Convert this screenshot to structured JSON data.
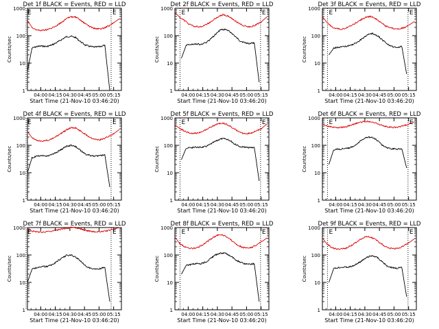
{
  "colors": {
    "events": "#000000",
    "lld": "#dd0000",
    "axes": "#000000"
  },
  "chart_data": [
    {
      "type": "line",
      "title": "Det 1f BLACK = Events, RED = LLD",
      "xlabel": "Start Time (21-Nov-10 03:46:20)",
      "ylabel": "Counts/sec",
      "yscale": "log",
      "ylim": [
        1,
        1000
      ],
      "yticks": [
        "1",
        "10",
        "100",
        "1000"
      ],
      "xticks": [
        "04:00",
        "04:15",
        "04:30",
        "04:45",
        "05:00",
        "05:15"
      ],
      "markers": [
        "E",
        "E"
      ],
      "series": [
        {
          "name": "Events",
          "key": "black",
          "x": [
            "03:46:20",
            "03:51",
            "03:56",
            "04:01",
            "04:06",
            "04:11",
            "04:16",
            "04:21",
            "04:26",
            "04:31",
            "04:36",
            "04:41",
            "04:46",
            "04:51",
            "04:56",
            "05:01",
            "05:06",
            "05:11"
          ],
          "y": [
            5,
            35,
            40,
            42,
            40,
            45,
            55,
            70,
            90,
            95,
            85,
            60,
            45,
            40,
            38,
            40,
            45,
            1
          ]
        },
        {
          "name": "LLD",
          "key": "red",
          "x": [
            "03:46:20",
            "03:51",
            "03:56",
            "04:01",
            "04:06",
            "04:11",
            "04:16",
            "04:21",
            "04:26",
            "04:31",
            "04:36",
            "04:41",
            "04:46",
            "04:51",
            "04:56",
            "05:01",
            "05:06",
            "05:11",
            "05:16",
            "05:21"
          ],
          "y": [
            360,
            200,
            160,
            155,
            165,
            185,
            230,
            300,
            400,
            490,
            470,
            360,
            270,
            210,
            180,
            175,
            195,
            240,
            310,
            420
          ]
        }
      ]
    },
    {
      "type": "line",
      "title": "Det 2f BLACK = Events, RED = LLD",
      "xlabel": "Start Time (21-Nov-10 03:46:20)",
      "ylabel": "Counts/sec",
      "yscale": "log",
      "ylim": [
        1,
        1000
      ],
      "yticks": [
        "1",
        "10",
        "100",
        "1000"
      ],
      "xticks": [
        "04:00",
        "04:15",
        "04:30",
        "04:45",
        "05:00",
        "05:15"
      ],
      "markers": [
        "E",
        "E"
      ],
      "series": [
        {
          "name": "Events",
          "key": "black",
          "x": [
            "03:53",
            "03:58",
            "04:03",
            "04:08",
            "04:13",
            "04:18",
            "04:23",
            "04:28",
            "04:33",
            "04:38",
            "04:43",
            "04:48",
            "04:53",
            "04:58",
            "05:03",
            "05:08",
            "05:13"
          ],
          "y": [
            15,
            45,
            48,
            50,
            48,
            55,
            75,
            110,
            160,
            170,
            140,
            95,
            65,
            55,
            52,
            55,
            2
          ]
        },
        {
          "name": "LLD",
          "key": "red",
          "x": [
            "03:46:20",
            "03:51",
            "03:56",
            "04:01",
            "04:06",
            "04:11",
            "04:16",
            "04:21",
            "04:26",
            "04:31",
            "04:36",
            "04:41",
            "04:46",
            "04:51",
            "04:56",
            "05:01",
            "05:06",
            "05:11",
            "05:16",
            "05:21"
          ],
          "y": [
            700,
            480,
            360,
            260,
            220,
            210,
            230,
            280,
            380,
            500,
            580,
            520,
            400,
            300,
            240,
            210,
            220,
            260,
            340,
            480
          ]
        }
      ]
    },
    {
      "type": "line",
      "title": "Det 3f BLACK = Events, RED = LLD",
      "xlabel": "Start Time (21-Nov-10 03:46:20)",
      "ylabel": "Counts/sec",
      "yscale": "log",
      "ylim": [
        1,
        1000
      ],
      "yticks": [
        "1",
        "10",
        "100",
        "1000"
      ],
      "xticks": [
        "04:00",
        "04:15",
        "04:30",
        "04:45",
        "05:00",
        "05:15"
      ],
      "markers": [
        "E",
        "E"
      ],
      "series": [
        {
          "name": "Events",
          "key": "black",
          "x": [
            "03:53",
            "03:58",
            "04:03",
            "04:08",
            "04:13",
            "04:18",
            "04:23",
            "04:28",
            "04:33",
            "04:38",
            "04:43",
            "04:48",
            "04:53",
            "04:58",
            "05:03",
            "05:08",
            "05:13"
          ],
          "y": [
            20,
            35,
            38,
            40,
            42,
            48,
            60,
            80,
            110,
            120,
            100,
            70,
            50,
            40,
            38,
            40,
            4
          ]
        },
        {
          "name": "LLD",
          "key": "red",
          "x": [
            "03:46:20",
            "03:51",
            "03:56",
            "04:01",
            "04:06",
            "04:11",
            "04:16",
            "04:21",
            "04:26",
            "04:31",
            "04:36",
            "04:41",
            "04:46",
            "04:51",
            "04:56",
            "05:01",
            "05:06",
            "05:11",
            "05:16",
            "05:21"
          ],
          "y": [
            500,
            300,
            210,
            180,
            175,
            190,
            230,
            290,
            380,
            470,
            500,
            420,
            310,
            230,
            190,
            175,
            180,
            200,
            250,
            330
          ]
        }
      ]
    },
    {
      "type": "line",
      "title": "Det 4f BLACK = Events, RED = LLD",
      "xlabel": "Start Time (21-Nov-10 03:46:20)",
      "ylabel": "Counts/sec",
      "yscale": "log",
      "ylim": [
        1,
        1000
      ],
      "yticks": [
        "1",
        "10",
        "100",
        "1000"
      ],
      "xticks": [
        "04:00",
        "04:15",
        "04:30",
        "04:45",
        "05:00",
        "05:15"
      ],
      "markers": [
        "E",
        "E"
      ],
      "series": [
        {
          "name": "Events",
          "key": "black",
          "x": [
            "03:46:20",
            "03:51",
            "03:56",
            "04:01",
            "04:06",
            "04:11",
            "04:16",
            "04:21",
            "04:26",
            "04:31",
            "04:36",
            "04:41",
            "04:46",
            "04:51",
            "04:56",
            "05:01",
            "05:06",
            "05:11"
          ],
          "y": [
            10,
            35,
            40,
            42,
            40,
            45,
            55,
            70,
            90,
            100,
            90,
            65,
            48,
            42,
            40,
            42,
            45,
            3
          ]
        },
        {
          "name": "LLD",
          "key": "red",
          "x": [
            "03:46:20",
            "03:51",
            "03:56",
            "04:01",
            "04:06",
            "04:11",
            "04:16",
            "04:21",
            "04:26",
            "04:31",
            "04:36",
            "04:41",
            "04:46",
            "04:51",
            "04:56",
            "05:01",
            "05:06",
            "05:11",
            "05:16",
            "05:21"
          ],
          "y": [
            320,
            190,
            150,
            145,
            150,
            170,
            210,
            270,
            360,
            440,
            430,
            330,
            250,
            195,
            165,
            160,
            180,
            220,
            280,
            380
          ]
        }
      ]
    },
    {
      "type": "line",
      "title": "Det 5f BLACK = Events, RED = LLD",
      "xlabel": "Start Time (21-Nov-10 03:46:20)",
      "ylabel": "Counts/sec",
      "yscale": "log",
      "ylim": [
        1,
        1000
      ],
      "yticks": [
        "1",
        "10",
        "100",
        "1000"
      ],
      "xticks": [
        "04:00",
        "04:15",
        "04:30",
        "04:45",
        "05:00",
        "05:15"
      ],
      "markers": [
        "E",
        "E"
      ],
      "series": [
        {
          "name": "Events",
          "key": "black",
          "x": [
            "03:53",
            "03:58",
            "04:03",
            "04:08",
            "04:13",
            "04:18",
            "04:23",
            "04:28",
            "04:33",
            "04:38",
            "04:43",
            "04:48",
            "04:53",
            "04:58",
            "05:03",
            "05:08",
            "05:13"
          ],
          "y": [
            30,
            80,
            82,
            85,
            85,
            90,
            110,
            140,
            170,
            175,
            150,
            110,
            90,
            85,
            82,
            85,
            5
          ]
        },
        {
          "name": "LLD",
          "key": "red",
          "x": [
            "03:46:20",
            "03:51",
            "03:56",
            "04:01",
            "04:06",
            "04:11",
            "04:16",
            "04:21",
            "04:26",
            "04:31",
            "04:36",
            "04:41",
            "04:46",
            "04:51",
            "04:56",
            "05:01",
            "05:06",
            "05:11",
            "05:16",
            "05:21"
          ],
          "y": [
            550,
            420,
            330,
            280,
            270,
            290,
            340,
            420,
            520,
            620,
            640,
            560,
            430,
            330,
            280,
            270,
            290,
            340,
            430,
            600
          ]
        }
      ]
    },
    {
      "type": "line",
      "title": "Det 6f BLACK = Events, RED = LLD",
      "xlabel": "Start Time (21-Nov-10 03:46:20)",
      "ylabel": "Counts/sec",
      "yscale": "log",
      "ylim": [
        1,
        1000
      ],
      "yticks": [
        "1",
        "10",
        "100",
        "1000"
      ],
      "xticks": [
        "04:00",
        "04:15",
        "04:30",
        "04:45",
        "05:00",
        "05:15"
      ],
      "markers": [
        "E",
        "E"
      ],
      "series": [
        {
          "name": "Events",
          "key": "black",
          "x": [
            "03:53",
            "03:58",
            "04:03",
            "04:08",
            "04:13",
            "04:18",
            "04:23",
            "04:28",
            "04:33",
            "04:38",
            "04:43",
            "04:48",
            "04:53",
            "04:58",
            "05:03",
            "05:08",
            "05:13"
          ],
          "y": [
            20,
            70,
            72,
            75,
            78,
            90,
            120,
            170,
            200,
            190,
            150,
            100,
            80,
            75,
            72,
            75,
            15
          ]
        },
        {
          "name": "LLD",
          "key": "red",
          "x": [
            "03:46:20",
            "03:51",
            "03:56",
            "04:01",
            "04:06",
            "04:11",
            "04:16",
            "04:21",
            "04:26",
            "04:31",
            "04:36",
            "04:41",
            "04:46",
            "04:51",
            "04:56",
            "05:01",
            "05:06",
            "05:11",
            "05:16",
            "05:21"
          ],
          "y": [
            600,
            500,
            460,
            440,
            450,
            480,
            540,
            620,
            700,
            750,
            740,
            660,
            560,
            490,
            460,
            450,
            470,
            530,
            620,
            720
          ]
        }
      ]
    },
    {
      "type": "line",
      "title": "Det 7f BLACK = Events, RED = LLD",
      "xlabel": "Start Time (21-Nov-10 03:46:20)",
      "ylabel": "Counts/sec",
      "yscale": "log",
      "ylim": [
        1,
        1000
      ],
      "yticks": [
        "1",
        "10",
        "100",
        "1000"
      ],
      "xticks": [
        "04:00",
        "04:15",
        "04:30",
        "04:45",
        "05:00",
        "05:15"
      ],
      "markers": [
        "E",
        "E"
      ],
      "series": [
        {
          "name": "Events",
          "key": "black",
          "x": [
            "03:46:20",
            "03:51",
            "03:56",
            "04:01",
            "04:06",
            "04:11",
            "04:16",
            "04:21",
            "04:26",
            "04:31",
            "04:36",
            "04:41",
            "04:46",
            "04:51",
            "04:56",
            "05:01",
            "05:06",
            "05:11"
          ],
          "y": [
            10,
            30,
            35,
            38,
            38,
            42,
            55,
            75,
            95,
            100,
            85,
            60,
            40,
            33,
            30,
            32,
            35,
            2
          ]
        },
        {
          "name": "LLD",
          "key": "red",
          "x": [
            "03:46:20",
            "03:51",
            "03:56",
            "04:01",
            "04:06",
            "04:11",
            "04:16",
            "04:21",
            "04:26",
            "04:31",
            "04:36",
            "04:41",
            "04:46",
            "04:51",
            "04:56",
            "05:01",
            "05:06",
            "05:11",
            "05:16",
            "05:21"
          ],
          "y": [
            900,
            750,
            700,
            690,
            700,
            740,
            800,
            880,
            950,
            1000,
            990,
            900,
            800,
            730,
            700,
            700,
            730,
            800,
            900,
            1000
          ]
        }
      ]
    },
    {
      "type": "line",
      "title": "Det 8f BLACK = Events, RED = LLD",
      "xlabel": "Start Time (21-Nov-10 03:46:20)",
      "ylabel": "Counts/sec",
      "yscale": "log",
      "ylim": [
        1,
        1000
      ],
      "yticks": [
        "1",
        "10",
        "100",
        "1000"
      ],
      "xticks": [
        "04:00",
        "04:15",
        "04:30",
        "04:45",
        "05:00",
        "05:15"
      ],
      "markers": [
        "E",
        "E"
      ],
      "series": [
        {
          "name": "Events",
          "key": "black",
          "x": [
            "03:53",
            "03:58",
            "04:03",
            "04:08",
            "04:13",
            "04:18",
            "04:23",
            "04:28",
            "04:33",
            "04:38",
            "04:43",
            "04:48",
            "04:53",
            "04:58",
            "05:03",
            "05:08",
            "05:13"
          ],
          "y": [
            20,
            42,
            45,
            48,
            48,
            55,
            75,
            100,
            120,
            115,
            95,
            70,
            55,
            48,
            46,
            48,
            2
          ]
        },
        {
          "name": "LLD",
          "key": "red",
          "x": [
            "03:46:20",
            "03:51",
            "03:56",
            "04:01",
            "04:06",
            "04:11",
            "04:16",
            "04:21",
            "04:26",
            "04:31",
            "04:36",
            "04:41",
            "04:46",
            "04:51",
            "04:56",
            "05:01",
            "05:06",
            "05:11",
            "05:16",
            "05:21"
          ],
          "y": [
            450,
            270,
            200,
            175,
            175,
            195,
            250,
            330,
            440,
            540,
            530,
            420,
            310,
            230,
            190,
            180,
            195,
            240,
            310,
            420
          ]
        }
      ]
    },
    {
      "type": "line",
      "title": "Det 9f BLACK = Events, RED = LLD",
      "xlabel": "Start Time (21-Nov-10 03:46:20)",
      "ylabel": "Counts/sec",
      "yscale": "log",
      "ylim": [
        1,
        1000
      ],
      "yticks": [
        "1",
        "10",
        "100",
        "1000"
      ],
      "xticks": [
        "04:00",
        "04:15",
        "04:30",
        "04:45",
        "05:00",
        "05:15"
      ],
      "markers": [
        "E",
        "E"
      ],
      "series": [
        {
          "name": "Events",
          "key": "black",
          "x": [
            "03:53",
            "03:58",
            "04:03",
            "04:08",
            "04:13",
            "04:18",
            "04:23",
            "04:28",
            "04:33",
            "04:38",
            "04:43",
            "04:48",
            "04:53",
            "04:58",
            "05:03",
            "05:08",
            "05:13"
          ],
          "y": [
            10,
            32,
            35,
            36,
            36,
            40,
            50,
            65,
            85,
            95,
            80,
            55,
            40,
            35,
            33,
            35,
            3
          ]
        },
        {
          "name": "LLD",
          "key": "red",
          "x": [
            "03:46:20",
            "03:51",
            "03:56",
            "04:01",
            "04:06",
            "04:11",
            "04:16",
            "04:21",
            "04:26",
            "04:31",
            "04:36",
            "04:41",
            "04:46",
            "04:51",
            "04:56",
            "05:01",
            "05:06",
            "05:11",
            "05:16",
            "05:21"
          ],
          "y": [
            420,
            250,
            185,
            165,
            165,
            180,
            220,
            290,
            380,
            470,
            460,
            360,
            270,
            205,
            175,
            170,
            185,
            225,
            290,
            390
          ]
        }
      ]
    }
  ]
}
